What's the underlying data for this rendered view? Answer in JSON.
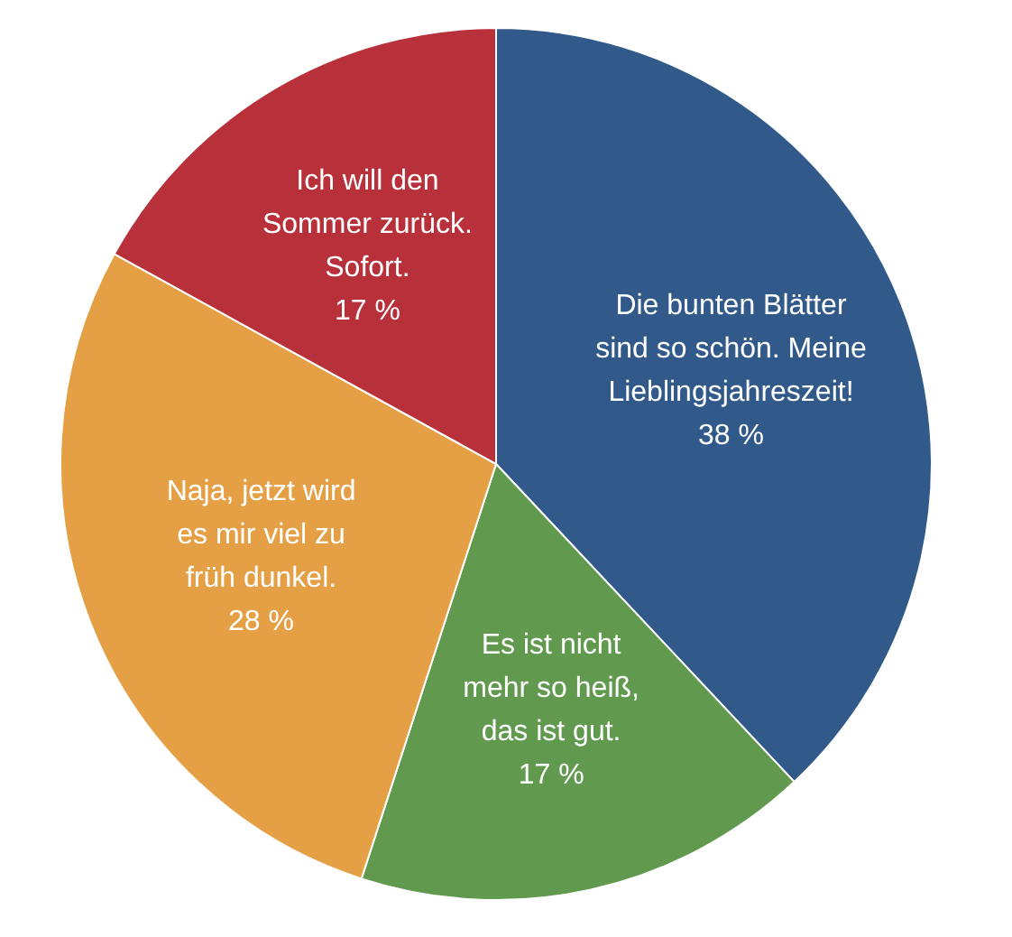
{
  "chart_data": {
    "type": "pie",
    "categories": [
      "Die bunten Blätter sind so schön. Meine Lieblingsjahreszeit!",
      "Es ist nicht mehr so heiß, das ist gut.",
      "Naja, jetzt wird es mir viel zu früh dunkel.",
      "Ich will den Sommer zurück. Sofort."
    ],
    "values": [
      38,
      17,
      28,
      17
    ],
    "colors": [
      "#31598a",
      "#619a4e",
      "#e5a045",
      "#b8303a"
    ],
    "value_labels": [
      "38 %",
      "17 %",
      "28 %",
      "17 %"
    ],
    "legend": false
  }
}
